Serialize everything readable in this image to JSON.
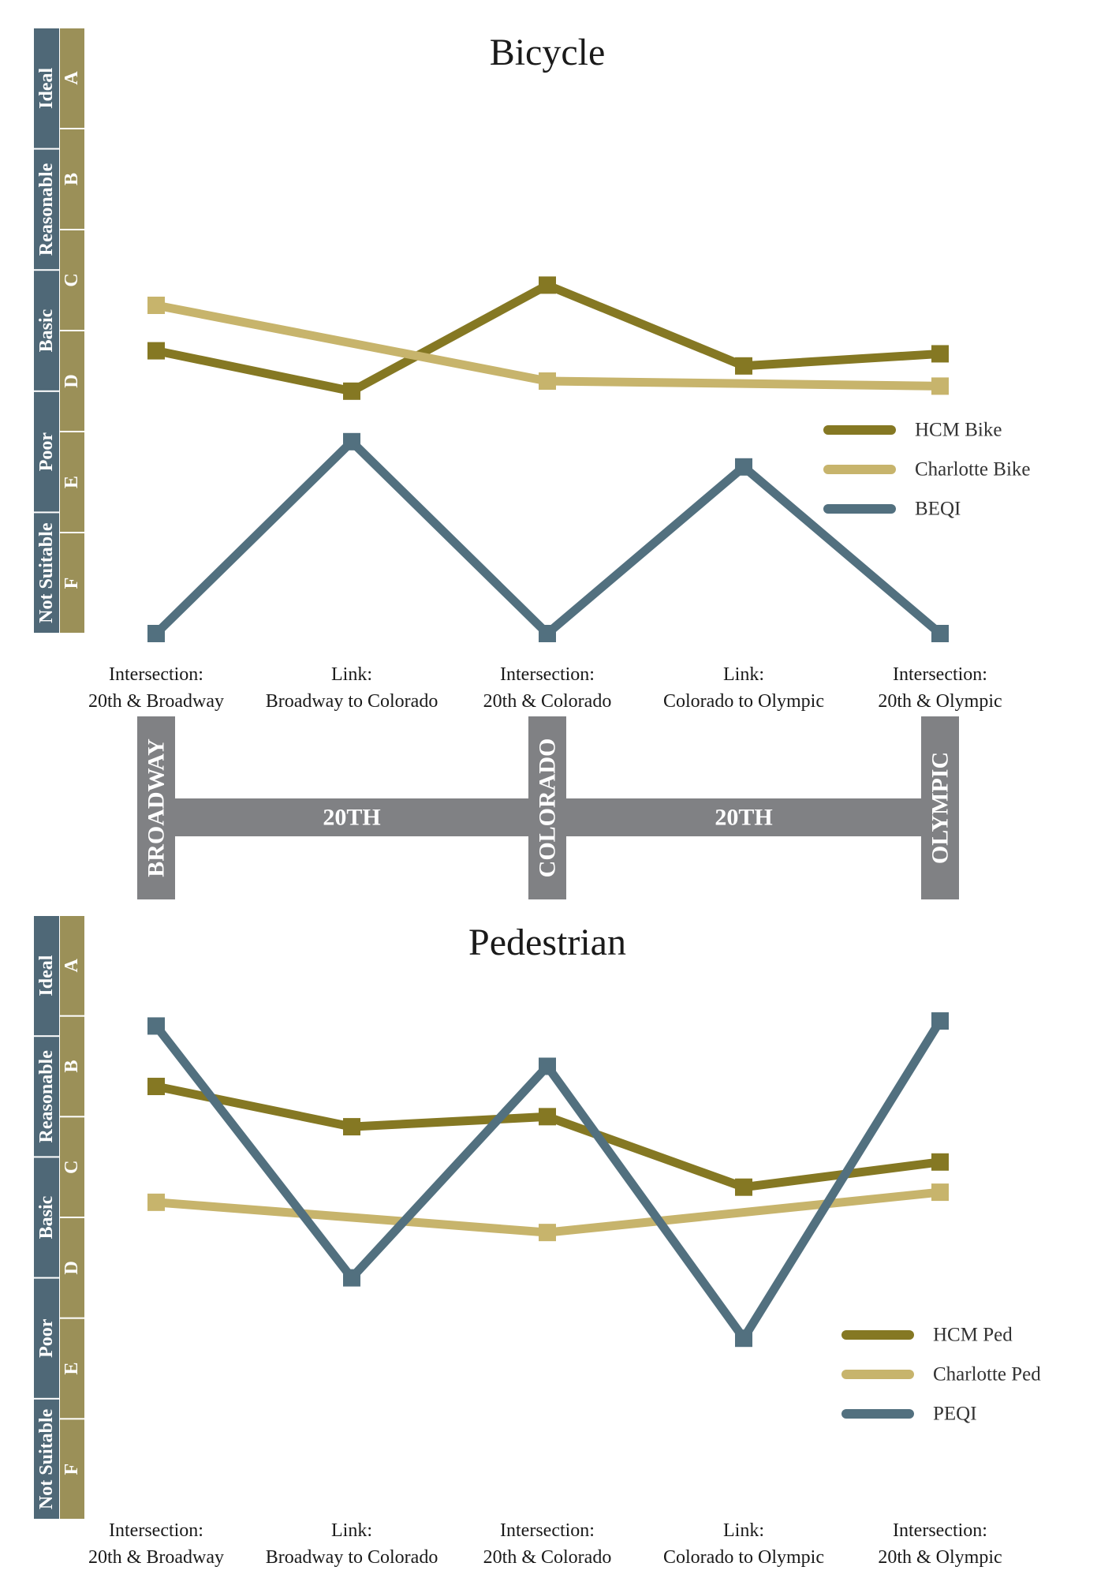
{
  "colors": {
    "hcm": "#857823",
    "charlotte": "#c7b46c",
    "eqi": "#52707f",
    "band_blue": "#4f6877",
    "band_olive": "#9b9058",
    "street_gray": "#808184"
  },
  "scale": {
    "bands": [
      "Ideal",
      "Reasonable",
      "Basic",
      "Poor",
      "Not Suitable"
    ],
    "grades": [
      "A",
      "B",
      "C",
      "D",
      "E",
      "F"
    ]
  },
  "street_map": {
    "cross_streets": [
      "BROADWAY",
      "COLORADO",
      "OLYMPIC"
    ],
    "main_street": [
      "20TH",
      "20TH"
    ]
  },
  "chart_data": [
    {
      "type": "line",
      "title": "Bicycle",
      "ylim": [
        0,
        6
      ],
      "categories": [
        [
          "Intersection:",
          "20th & Broadway"
        ],
        [
          "Link:",
          "Broadway to Colorado"
        ],
        [
          "Intersection:",
          "20th & Colorado"
        ],
        [
          "Link:",
          "Colorado to Olympic"
        ],
        [
          "Intersection:",
          "20th & Olympic"
        ]
      ],
      "series": [
        {
          "name": "HCM Bike",
          "color": "#857823",
          "values": [
            2.8,
            2.4,
            3.45,
            2.65,
            2.77
          ]
        },
        {
          "name": "Charlotte Bike",
          "color": "#c7b46c",
          "values": [
            3.25,
            null,
            2.5,
            null,
            2.45
          ]
        },
        {
          "name": "BEQI",
          "color": "#52707f",
          "values": [
            0.0,
            1.9,
            0.0,
            1.65,
            0.0
          ]
        }
      ]
    },
    {
      "type": "line",
      "title": "Pedestrian",
      "ylim": [
        0,
        6
      ],
      "categories": [
        [
          "Intersection:",
          "20th & Broadway"
        ],
        [
          "Link:",
          "Broadway to Colorado"
        ],
        [
          "Intersection:",
          "20th & Colorado"
        ],
        [
          "Link:",
          "Colorado to Olympic"
        ],
        [
          "Intersection:",
          "20th & Olympic"
        ]
      ],
      "series": [
        {
          "name": "HCM Ped",
          "color": "#857823",
          "values": [
            4.3,
            3.9,
            4.0,
            3.3,
            3.55
          ]
        },
        {
          "name": "Charlotte Ped",
          "color": "#c7b46c",
          "values": [
            3.15,
            null,
            2.85,
            null,
            3.25
          ]
        },
        {
          "name": "PEQI",
          "color": "#52707f",
          "values": [
            4.9,
            2.4,
            4.5,
            1.8,
            4.95
          ]
        }
      ]
    }
  ]
}
